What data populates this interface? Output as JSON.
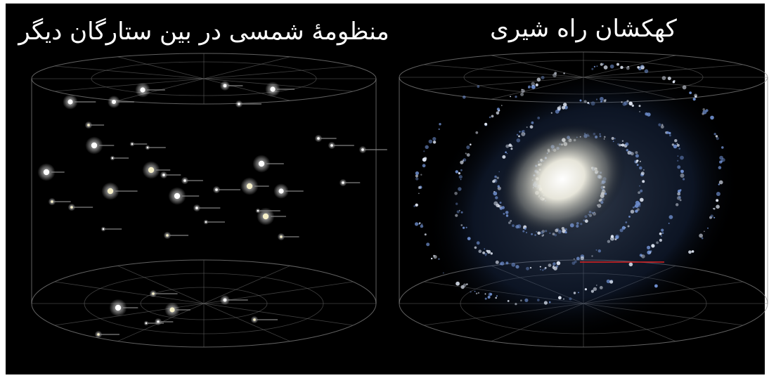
{
  "panels": [
    {
      "title": "منظومهٔ شمسی در بین ستارگان دیگر"
    },
    {
      "title": "کهکشان راه شیری"
    }
  ]
}
